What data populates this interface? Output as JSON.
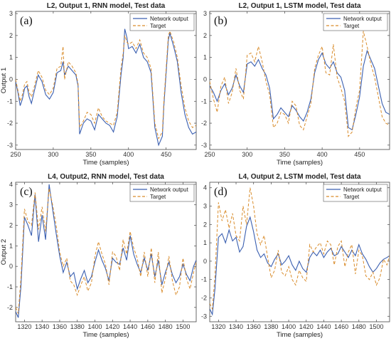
{
  "colors": {
    "network": "#3a5fb0",
    "target": "#d98c2b"
  },
  "chart_data": [
    {
      "type": "line",
      "panel": "(a)",
      "title": "L2, Output 1, RNN model, Test data",
      "xlabel": "Time (samples)",
      "ylabel": "Output 1",
      "xlim": [
        250,
        490
      ],
      "ylim": [
        -3.2,
        3.1
      ],
      "xticks": [
        250,
        300,
        350,
        400,
        450
      ],
      "yticks": [
        -3,
        -2,
        -1,
        0,
        1,
        2,
        3
      ],
      "legend_position": "top-right",
      "series": [
        {
          "name": "Network output",
          "style": "solid",
          "x": [
            250,
            253,
            256,
            259,
            262,
            265,
            268,
            271,
            275,
            280,
            285,
            290,
            295,
            300,
            305,
            310,
            313,
            315,
            320,
            325,
            330,
            333,
            335,
            340,
            345,
            350,
            355,
            360,
            365,
            370,
            375,
            380,
            385,
            390,
            393,
            395,
            398,
            400,
            405,
            410,
            415,
            420,
            425,
            430,
            435,
            440,
            445,
            447,
            450,
            453,
            455,
            460,
            465,
            470,
            475,
            480,
            485,
            490
          ],
          "y": [
            -0.1,
            -0.6,
            -1.2,
            -0.9,
            -0.4,
            -0.3,
            -0.8,
            -1.1,
            -0.5,
            0.2,
            -0.1,
            -0.7,
            -0.9,
            -0.6,
            0.3,
            0.4,
            0.8,
            0.2,
            0.6,
            0.4,
            0.2,
            -0.3,
            -2.5,
            -2.0,
            -1.8,
            -1.9,
            -2.3,
            -1.6,
            -1.8,
            -2.0,
            -2.1,
            -2.4,
            -1.7,
            0.2,
            1.0,
            2.3,
            1.9,
            1.4,
            1.5,
            1.2,
            1.6,
            1.0,
            0.8,
            0.3,
            -2.2,
            -3.0,
            -2.6,
            -1.2,
            0.3,
            1.8,
            2.1,
            1.5,
            0.8,
            -0.6,
            -1.6,
            -2.2,
            -2.5,
            -2.4
          ]
        },
        {
          "name": "Target",
          "style": "dashed",
          "x": [
            250,
            253,
            256,
            259,
            262,
            265,
            268,
            271,
            275,
            280,
            285,
            290,
            295,
            300,
            305,
            310,
            313,
            315,
            320,
            325,
            330,
            333,
            335,
            340,
            345,
            350,
            355,
            360,
            365,
            370,
            375,
            380,
            385,
            390,
            393,
            395,
            398,
            400,
            405,
            410,
            415,
            420,
            425,
            430,
            435,
            440,
            445,
            447,
            450,
            453,
            455,
            460,
            465,
            470,
            475,
            480,
            485,
            490
          ],
          "y": [
            0.0,
            -0.5,
            -1.0,
            -0.7,
            -0.2,
            -0.1,
            -0.6,
            -0.8,
            -0.3,
            0.4,
            0.1,
            -0.5,
            -0.7,
            -0.4,
            0.5,
            0.6,
            1.5,
            0.0,
            0.8,
            0.6,
            0.3,
            -0.2,
            -2.2,
            -1.9,
            -1.5,
            -1.6,
            -2.0,
            -1.3,
            -1.7,
            -1.9,
            -2.0,
            -2.1,
            -1.5,
            0.5,
            1.2,
            2.0,
            1.7,
            1.6,
            1.7,
            1.4,
            1.8,
            1.2,
            1.0,
            0.5,
            -2.0,
            -2.7,
            -2.4,
            -1.0,
            0.5,
            2.0,
            2.2,
            1.7,
            1.0,
            -0.3,
            -1.3,
            -1.9,
            -2.2,
            -2.1
          ]
        }
      ]
    },
    {
      "type": "line",
      "panel": "(b)",
      "title": "L2, Output 1, LSTM model, Test data",
      "xlabel": "Time (samples)",
      "ylabel": "",
      "xlim": [
        250,
        490
      ],
      "ylim": [
        -3.2,
        3.1
      ],
      "xticks": [
        250,
        300,
        350,
        400,
        450
      ],
      "yticks": [
        -3,
        -2,
        -1,
        0,
        1,
        2,
        3
      ],
      "legend_position": "top-right",
      "series": [
        {
          "name": "Network output",
          "style": "solid",
          "x": [
            250,
            255,
            260,
            265,
            270,
            275,
            280,
            285,
            290,
            295,
            300,
            305,
            310,
            315,
            320,
            325,
            330,
            335,
            340,
            345,
            350,
            355,
            360,
            365,
            370,
            375,
            380,
            385,
            390,
            395,
            400,
            405,
            410,
            415,
            420,
            425,
            430,
            435,
            440,
            445,
            450,
            455,
            460,
            465,
            470,
            475,
            480,
            485,
            490
          ],
          "y": [
            -0.3,
            -0.6,
            -1.0,
            -0.5,
            -0.2,
            -0.7,
            -0.4,
            0.2,
            -0.3,
            -0.6,
            0.7,
            0.8,
            0.6,
            0.9,
            0.5,
            0.2,
            -0.4,
            -1.8,
            -1.6,
            -1.3,
            -1.5,
            -1.7,
            -1.2,
            -1.4,
            -1.7,
            -1.9,
            -1.5,
            -0.9,
            0.3,
            0.9,
            1.2,
            0.7,
            0.5,
            0.8,
            0.3,
            0.1,
            -0.5,
            -2.2,
            -2.3,
            -1.6,
            -0.8,
            0.6,
            1.3,
            0.9,
            0.5,
            -0.3,
            -1.1,
            -1.5,
            -1.6
          ]
        },
        {
          "name": "Target",
          "style": "dashed",
          "x": [
            250,
            255,
            260,
            265,
            270,
            275,
            280,
            285,
            290,
            295,
            300,
            305,
            310,
            315,
            320,
            325,
            330,
            335,
            340,
            345,
            350,
            355,
            360,
            365,
            370,
            375,
            380,
            385,
            390,
            395,
            400,
            405,
            410,
            415,
            420,
            425,
            430,
            435,
            440,
            445,
            450,
            455,
            460,
            465,
            470,
            475,
            480,
            485,
            490
          ],
          "y": [
            -0.1,
            -0.9,
            -1.5,
            -0.3,
            0.1,
            -1.1,
            -0.6,
            0.5,
            -0.5,
            -0.9,
            1.1,
            1.2,
            0.8,
            1.5,
            0.8,
            -0.1,
            -0.7,
            -2.2,
            -2.0,
            -1.5,
            -1.6,
            -2.0,
            -1.0,
            -1.2,
            -2.1,
            -2.3,
            -1.7,
            -1.1,
            0.5,
            1.1,
            1.5,
            0.3,
            0.2,
            1.6,
            0.1,
            -0.4,
            -1.0,
            -2.6,
            -2.4,
            -1.3,
            -0.5,
            2.2,
            1.5,
            0.7,
            0.1,
            -0.8,
            -1.7,
            -2.0,
            -2.1
          ]
        }
      ]
    },
    {
      "type": "line",
      "panel": "(c)",
      "title": "L4, Output2, RNN model, Test data",
      "xlabel": "Time (samples)",
      "ylabel": "Output 2",
      "xlim": [
        1310,
        1515
      ],
      "ylim": [
        -2.7,
        4.1
      ],
      "xticks": [
        1320,
        1340,
        1360,
        1380,
        1400,
        1420,
        1440,
        1460,
        1480,
        1500
      ],
      "yticks": [
        -2,
        -1,
        0,
        1,
        2,
        3,
        4
      ],
      "legend_position": "top-right",
      "series": [
        {
          "name": "Network output",
          "style": "solid",
          "x": [
            1310,
            1313,
            1316,
            1320,
            1324,
            1328,
            1332,
            1336,
            1340,
            1344,
            1348,
            1352,
            1356,
            1360,
            1364,
            1368,
            1372,
            1376,
            1380,
            1384,
            1388,
            1392,
            1396,
            1400,
            1404,
            1408,
            1412,
            1416,
            1420,
            1424,
            1428,
            1432,
            1436,
            1440,
            1444,
            1448,
            1452,
            1456,
            1460,
            1464,
            1468,
            1472,
            1476,
            1480,
            1484,
            1488,
            1492,
            1496,
            1500,
            1504,
            1508,
            1512,
            1515
          ],
          "y": [
            -2.2,
            -2.5,
            -1.0,
            2.4,
            2.0,
            1.5,
            3.5,
            1.2,
            2.5,
            1.3,
            4.0,
            2.8,
            1.6,
            0.5,
            -0.3,
            0.2,
            -0.5,
            -0.3,
            -1.1,
            -0.6,
            -0.2,
            -0.8,
            -0.5,
            0.2,
            0.8,
            0.3,
            -0.1,
            -0.7,
            0.4,
            0.2,
            0.1,
            0.9,
            0.3,
            1.5,
            0.6,
            0.1,
            -0.3,
            0.4,
            -0.2,
            0.6,
            -0.5,
            0.3,
            -0.9,
            -0.3,
            0.2,
            -0.4,
            -0.8,
            -0.5,
            0.1,
            -0.4,
            -0.7,
            0.0,
            0.3
          ]
        },
        {
          "name": "Target",
          "style": "dashed",
          "x": [
            1310,
            1313,
            1316,
            1320,
            1324,
            1328,
            1332,
            1336,
            1340,
            1344,
            1348,
            1352,
            1356,
            1360,
            1364,
            1368,
            1372,
            1376,
            1380,
            1384,
            1388,
            1392,
            1396,
            1400,
            1404,
            1408,
            1412,
            1416,
            1420,
            1424,
            1428,
            1432,
            1436,
            1440,
            1444,
            1448,
            1452,
            1456,
            1460,
            1464,
            1468,
            1472,
            1476,
            1480,
            1484,
            1488,
            1492,
            1496,
            1500,
            1504,
            1508,
            1512,
            1515
          ],
          "y": [
            -2.0,
            -2.3,
            -0.6,
            2.8,
            2.2,
            2.0,
            3.6,
            1.8,
            2.9,
            1.7,
            3.8,
            3.0,
            2.0,
            0.7,
            0.0,
            0.4,
            -0.7,
            -0.9,
            -1.4,
            -0.9,
            -0.5,
            -1.2,
            -0.8,
            0.5,
            1.2,
            0.6,
            0.1,
            -0.9,
            0.7,
            0.5,
            -0.2,
            1.3,
            0.6,
            1.7,
            0.9,
            0.4,
            -0.5,
            0.7,
            -0.5,
            0.9,
            -0.8,
            0.7,
            -1.3,
            -0.6,
            0.5,
            -0.7,
            -1.4,
            -1.0,
            0.4,
            -0.6,
            -1.1,
            -0.3,
            0.2
          ]
        }
      ]
    },
    {
      "type": "line",
      "panel": "(d)",
      "title": "L4, Output 2, LSTM model, Test data",
      "xlabel": "Time (samples)",
      "ylabel": "",
      "xlim": [
        1310,
        1515
      ],
      "ylim": [
        -3.3,
        4.3
      ],
      "xticks": [
        1320,
        1340,
        1360,
        1380,
        1400,
        1420,
        1440,
        1460,
        1480,
        1500
      ],
      "yticks": [
        -3,
        -2,
        -1,
        0,
        1,
        2,
        3,
        4
      ],
      "legend_position": "top-right",
      "series": [
        {
          "name": "Network output",
          "style": "solid",
          "x": [
            1310,
            1313,
            1316,
            1320,
            1324,
            1328,
            1332,
            1336,
            1340,
            1344,
            1348,
            1352,
            1356,
            1360,
            1364,
            1368,
            1372,
            1376,
            1380,
            1384,
            1388,
            1392,
            1396,
            1400,
            1404,
            1408,
            1412,
            1416,
            1420,
            1424,
            1428,
            1432,
            1436,
            1440,
            1444,
            1448,
            1452,
            1456,
            1460,
            1464,
            1468,
            1472,
            1476,
            1480,
            1484,
            1488,
            1492,
            1496,
            1500,
            1504,
            1508,
            1512,
            1515
          ],
          "y": [
            -2.6,
            -2.9,
            -1.5,
            1.3,
            1.5,
            1.0,
            1.7,
            1.1,
            1.3,
            0.5,
            0.8,
            1.9,
            2.4,
            1.6,
            0.6,
            0.2,
            0.4,
            -0.1,
            -0.3,
            0.1,
            0.4,
            -0.2,
            0.0,
            0.3,
            -0.2,
            -0.5,
            0.0,
            -0.4,
            -0.6,
            0.2,
            0.5,
            0.3,
            0.6,
            0.2,
            0.5,
            0.7,
            0.3,
            0.4,
            0.8,
            0.5,
            0.2,
            0.6,
            0.3,
            0.9,
            0.4,
            0.1,
            -0.3,
            -0.6,
            -0.4,
            -0.1,
            0.1,
            0.2,
            0.3
          ]
        },
        {
          "name": "Target",
          "style": "dashed",
          "x": [
            1310,
            1313,
            1316,
            1320,
            1324,
            1328,
            1332,
            1336,
            1340,
            1344,
            1348,
            1352,
            1356,
            1360,
            1364,
            1368,
            1372,
            1376,
            1380,
            1384,
            1388,
            1392,
            1396,
            1400,
            1404,
            1408,
            1412,
            1416,
            1420,
            1424,
            1428,
            1432,
            1436,
            1440,
            1444,
            1448,
            1452,
            1456,
            1460,
            1464,
            1468,
            1472,
            1476,
            1480,
            1484,
            1488,
            1492,
            1496,
            1500,
            1504,
            1508,
            1512,
            1515
          ],
          "y": [
            -2.3,
            -2.6,
            -0.8,
            3.2,
            2.2,
            2.8,
            1.8,
            2.6,
            1.4,
            1.1,
            3.0,
            2.0,
            4.0,
            3.0,
            1.5,
            0.9,
            1.4,
            0.2,
            -0.9,
            -0.5,
            0.6,
            -0.6,
            -0.8,
            -0.3,
            -1.0,
            -1.3,
            -0.5,
            -0.9,
            -1.1,
            0.9,
            0.5,
            0.8,
            1.0,
            0.4,
            1.1,
            0.9,
            -0.2,
            0.8,
            1.1,
            -0.3,
            0.5,
            0.9,
            -0.7,
            0.6,
            0.3,
            -0.8,
            -1.0,
            -0.6,
            -1.3,
            -0.9,
            0.1,
            -0.2,
            0.3
          ]
        }
      ]
    }
  ]
}
